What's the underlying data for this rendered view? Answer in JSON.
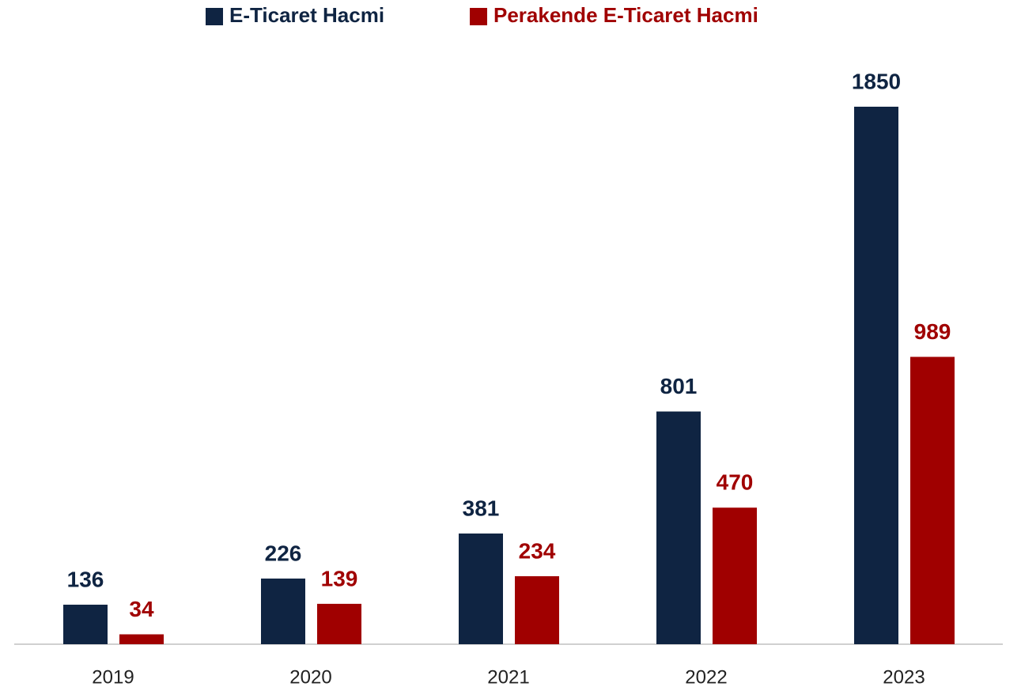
{
  "chart_data": {
    "type": "bar",
    "categories": [
      "2019",
      "2020",
      "2021",
      "2022",
      "2023"
    ],
    "series": [
      {
        "name": "E-Ticaret Hacmi",
        "color": "#0f2442",
        "values": [
          136,
          226,
          381,
          801,
          1850
        ]
      },
      {
        "name": "Perakende E-Ticaret Hacmi",
        "color": "#a00000",
        "values": [
          34,
          139,
          234,
          470,
          989
        ]
      }
    ],
    "legend": "top"
  }
}
